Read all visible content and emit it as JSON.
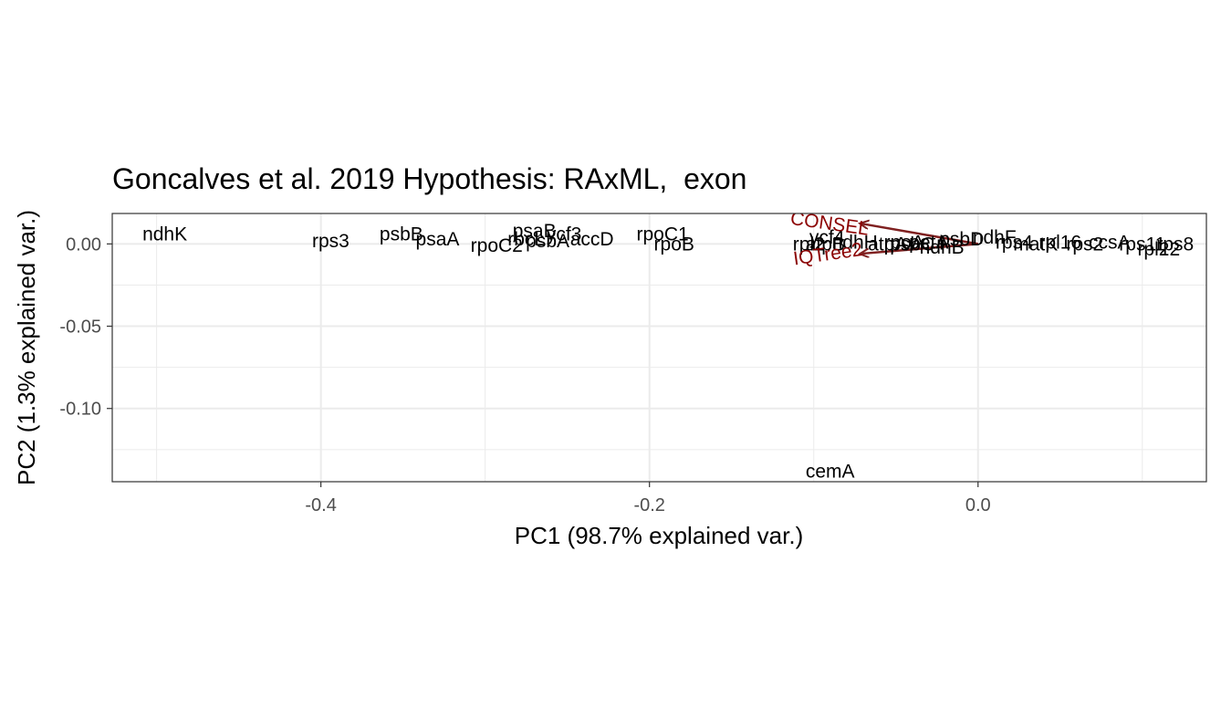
{
  "chart_data": {
    "type": "scatter",
    "title": "Goncalves et al. 2019 Hypothesis: RAxML,  exon",
    "xlabel": "PC1 (98.7% explained var.)",
    "ylabel": "PC2 (1.3% explained var.)",
    "xlim": [
      -0.527,
      0.139
    ],
    "ylim": [
      -0.1445,
      0.0185
    ],
    "x_ticks": [
      -0.4,
      -0.2,
      0.0
    ],
    "x_tick_labels": [
      "-0.4",
      "-0.2",
      "0.0"
    ],
    "y_ticks": [
      0.0,
      -0.05,
      -0.1
    ],
    "y_tick_labels": [
      "0.00",
      "-0.05",
      "-0.10"
    ],
    "x_minor_ticks": [
      -0.5,
      -0.3,
      -0.1,
      0.1
    ],
    "y_minor_ticks": [
      -0.025,
      -0.075,
      -0.125
    ],
    "grid": true,
    "colors": {
      "points": "#000000",
      "loadings": "#8b0000",
      "arrows": "#7f2020",
      "grid": "#ebebeb",
      "border": "#333333"
    },
    "points": [
      {
        "label": "ndhK",
        "x": -0.495,
        "y": 0.006
      },
      {
        "label": "rps3",
        "x": -0.394,
        "y": 0.002
      },
      {
        "label": "psbB",
        "x": -0.351,
        "y": 0.006
      },
      {
        "label": "psaA",
        "x": -0.329,
        "y": 0.003
      },
      {
        "label": "rpoC2",
        "x": -0.293,
        "y": -0.001
      },
      {
        "label": "psaB",
        "x": -0.27,
        "y": 0.008
      },
      {
        "label": "ycf3",
        "x": -0.252,
        "y": 0.006
      },
      {
        "label": "rbcL",
        "x": -0.275,
        "y": 0.003
      },
      {
        "label": "psbA",
        "x": -0.262,
        "y": 0.002
      },
      {
        "label": "accD",
        "x": -0.235,
        "y": 0.003
      },
      {
        "label": "rpoC1",
        "x": -0.192,
        "y": 0.006
      },
      {
        "label": "rpoB",
        "x": -0.185,
        "y": 0.0
      },
      {
        "label": "cemA",
        "x": -0.09,
        "y": -0.138
      },
      {
        "label": "ycf4",
        "x": -0.092,
        "y": 0.004
      },
      {
        "label": "rpl2",
        "x": -0.103,
        "y": 0.0
      },
      {
        "label": "atpB",
        "x": -0.093,
        "y": 0.0
      },
      {
        "label": "ndhH",
        "x": -0.075,
        "y": 0.001
      },
      {
        "label": "atpA",
        "x": -0.055,
        "y": 0.0
      },
      {
        "label": "rpoA",
        "x": -0.045,
        "y": 0.001
      },
      {
        "label": "psbC",
        "x": -0.04,
        "y": 0.0
      },
      {
        "label": "petA",
        "x": -0.03,
        "y": 0.001
      },
      {
        "label": "ndhB",
        "x": -0.022,
        "y": -0.002
      },
      {
        "label": "psbD",
        "x": -0.01,
        "y": 0.003
      },
      {
        "label": "ndhF",
        "x": 0.01,
        "y": 0.004
      },
      {
        "label": "rps4",
        "x": 0.022,
        "y": 0.001
      },
      {
        "label": "matK",
        "x": 0.035,
        "y": 0.0
      },
      {
        "label": "rpl16",
        "x": 0.05,
        "y": 0.001
      },
      {
        "label": "rps2",
        "x": 0.065,
        "y": 0.0
      },
      {
        "label": "ccsA",
        "x": 0.08,
        "y": 0.001
      },
      {
        "label": "rps11",
        "x": 0.1,
        "y": 0.0
      },
      {
        "label": "rps8",
        "x": 0.12,
        "y": 0.0
      },
      {
        "label": "rpl22",
        "x": 0.11,
        "y": -0.003
      }
    ],
    "loadings": [
      {
        "label": "CONSEL",
        "x": -0.072,
        "y": 0.0125,
        "angle": 8
      },
      {
        "label": "IQTree2",
        "x": -0.072,
        "y": -0.006,
        "angle": -8
      }
    ]
  }
}
